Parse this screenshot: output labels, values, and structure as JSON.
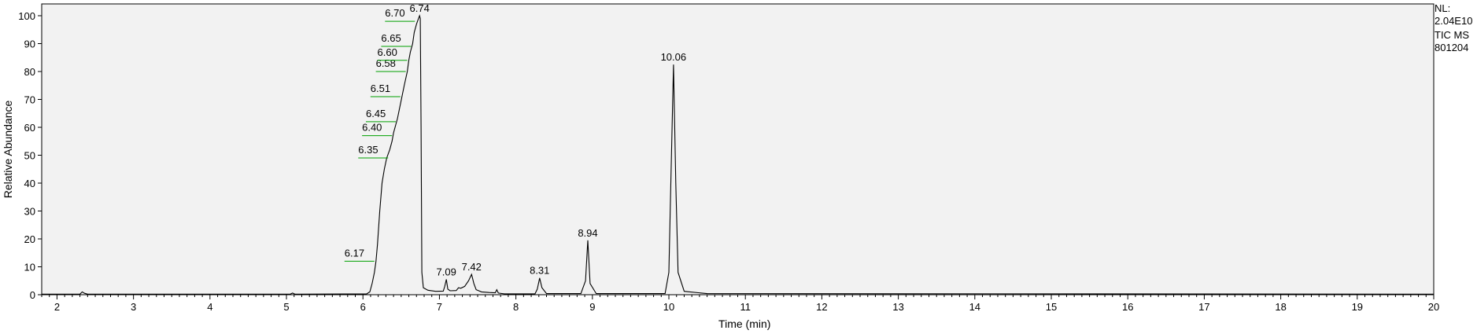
{
  "chart_data": {
    "type": "line",
    "title": "",
    "xlabel": "Time (min)",
    "ylabel": "Relative Abundance",
    "xlim": [
      1.8,
      20.0
    ],
    "ylim": [
      0,
      100
    ],
    "x_ticks": [
      2,
      3,
      4,
      5,
      6,
      7,
      8,
      9,
      10,
      11,
      12,
      13,
      14,
      15,
      16,
      17,
      18,
      19,
      20
    ],
    "y_ticks": [
      0,
      10,
      20,
      30,
      40,
      50,
      60,
      70,
      80,
      90,
      100
    ],
    "grid": false,
    "background": "#f2f2f2",
    "line_color": "#000000",
    "label_leader_color": "#00a000",
    "info": {
      "nl_label": "NL:",
      "nl_value": "2.04E10",
      "trace": "TIC  MS",
      "sample": "801204"
    },
    "series": [
      {
        "x": [
          1.8,
          2.3,
          2.33,
          2.36,
          2.4,
          2.6,
          5.05,
          5.08,
          5.11,
          6.05,
          6.09,
          6.12,
          6.15,
          6.17,
          6.19,
          6.22,
          6.25,
          6.28,
          6.31,
          6.35,
          6.38,
          6.4,
          6.43,
          6.45,
          6.48,
          6.51,
          6.54,
          6.58,
          6.6,
          6.62,
          6.65,
          6.67,
          6.7,
          6.72,
          6.74,
          6.75,
          6.76,
          6.77,
          6.79,
          6.85,
          6.95,
          7.05,
          7.07,
          7.09,
          7.11,
          7.14,
          7.22,
          7.25,
          7.28,
          7.33,
          7.38,
          7.42,
          7.45,
          7.48,
          7.55,
          7.65,
          7.73,
          7.75,
          7.77,
          7.85,
          8.25,
          8.28,
          8.31,
          8.34,
          8.4,
          8.85,
          8.91,
          8.94,
          8.97,
          9.05,
          9.95,
          10.0,
          10.03,
          10.06,
          10.09,
          10.12,
          10.2,
          10.5,
          20.0
        ],
        "y": [
          0.2,
          0.2,
          1.0,
          0.5,
          0.2,
          0.2,
          0.2,
          0.6,
          0.2,
          0.3,
          1.0,
          4.0,
          8.0,
          12.0,
          18.0,
          30.0,
          40.0,
          45.0,
          49.0,
          52.0,
          55.0,
          58.0,
          61.0,
          63.0,
          67.0,
          71.0,
          75.0,
          80.0,
          84.0,
          87.0,
          90.0,
          94.0,
          97.0,
          98.5,
          100.0,
          99.0,
          60.0,
          8.0,
          2.5,
          1.6,
          1.2,
          1.3,
          3.0,
          5.5,
          2.0,
          1.4,
          1.5,
          2.5,
          2.3,
          3.0,
          5.0,
          7.3,
          4.0,
          1.8,
          1.0,
          0.8,
          0.7,
          1.8,
          0.6,
          0.3,
          0.3,
          2.0,
          6.0,
          2.5,
          0.4,
          0.4,
          5.0,
          19.5,
          4.0,
          0.4,
          0.4,
          8.0,
          45.0,
          82.5,
          40.0,
          8.0,
          1.2,
          0.4,
          0.2
        ]
      }
    ],
    "peaks": [
      {
        "label": "6.17",
        "x": 6.17,
        "y": 12.0
      },
      {
        "label": "6.35",
        "x": 6.35,
        "y": 49.0
      },
      {
        "label": "6.40",
        "x": 6.4,
        "y": 57.0
      },
      {
        "label": "6.45",
        "x": 6.45,
        "y": 62.0
      },
      {
        "label": "6.51",
        "x": 6.51,
        "y": 71.0
      },
      {
        "label": "6.58",
        "x": 6.58,
        "y": 80.0
      },
      {
        "label": "6.60",
        "x": 6.6,
        "y": 84.0
      },
      {
        "label": "6.65",
        "x": 6.65,
        "y": 89.0
      },
      {
        "label": "6.70",
        "x": 6.7,
        "y": 98.0
      },
      {
        "label": "6.74",
        "x": 6.74,
        "y": 100.0
      },
      {
        "label": "7.09",
        "x": 7.09,
        "y": 5.5
      },
      {
        "label": "7.42",
        "x": 7.42,
        "y": 7.3
      },
      {
        "label": "8.31",
        "x": 8.31,
        "y": 6.0
      },
      {
        "label": "8.94",
        "x": 8.94,
        "y": 19.5
      },
      {
        "label": "10.06",
        "x": 10.06,
        "y": 82.5
      }
    ]
  }
}
